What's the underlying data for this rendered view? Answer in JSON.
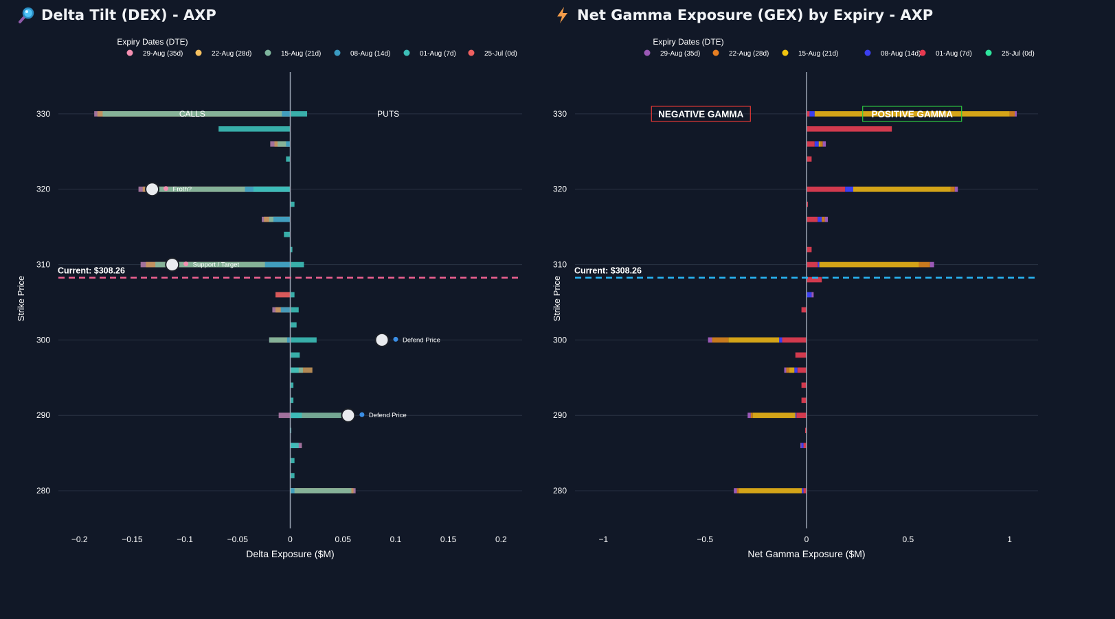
{
  "colors": {
    "background": "#111827",
    "grid": "#2a3344",
    "zero_line": "#9aa3b2",
    "dex_current_line": "#f06292",
    "gex_current_line": "#29b6f6",
    "negative_gamma": "#e53935",
    "positive_gamma": "#2ecc40"
  },
  "chart_data": [
    {
      "id": "dex",
      "type": "bar",
      "orientation": "horizontal",
      "barmode": "overlay",
      "title": "Delta Tilt (DEX) - AXP",
      "title_icon": "magnifier-icon",
      "xlabel": "Delta Exposure ($M)",
      "ylabel": "Strike Price",
      "xlim": [
        -0.22,
        0.22
      ],
      "ylim": [
        275,
        336
      ],
      "xticks": [
        -0.2,
        -0.15,
        -0.1,
        -0.05,
        0,
        0.05,
        0.1,
        0.15,
        0.2
      ],
      "xtick_labels": [
        "−0.2",
        "−0.15",
        "−0.1",
        "−0.05",
        "0",
        "0.05",
        "0.1",
        "0.15",
        "0.2"
      ],
      "yticks": [
        280,
        290,
        300,
        310,
        320,
        330
      ],
      "grid": true,
      "legend": {
        "title": "Expiry Dates (DTE)",
        "placement": "top",
        "items": [
          {
            "label": "29-Aug (35d)",
            "color": "#f48fb1"
          },
          {
            "label": "22-Aug (28d)",
            "color": "#f6c160"
          },
          {
            "label": "15-Aug (21d)",
            "color": "#7fb69e"
          },
          {
            "label": "08-Aug (14d)",
            "color": "#3a9bc2"
          },
          {
            "label": "01-Aug (7d)",
            "color": "#3dbfb8"
          },
          {
            "label": "25-Jul (0d)",
            "color": "#ef6060"
          }
        ]
      },
      "series": [
        {
          "name": "29-Aug (35d)",
          "color": "#b07aa8",
          "y": [
            330,
            328,
            326,
            324,
            322,
            320,
            318,
            316,
            314,
            312,
            310,
            308,
            306,
            304,
            302,
            300,
            298,
            296,
            294,
            292,
            290,
            288,
            286,
            284,
            282,
            280
          ],
          "values": [
            -0.186,
            0,
            -0.019,
            0,
            0,
            -0.144,
            0,
            -0.027,
            0,
            0,
            -0.142,
            0,
            0,
            -0.017,
            0,
            -0.02,
            0,
            0,
            0,
            0,
            -0.011,
            0,
            0.011,
            0,
            0,
            0.062
          ]
        },
        {
          "name": "22-Aug (28d)",
          "color": "#c4955a",
          "y": [
            330,
            328,
            326,
            324,
            322,
            320,
            318,
            316,
            314,
            312,
            310,
            308,
            306,
            304,
            302,
            300,
            298,
            296,
            294,
            292,
            290,
            288,
            286,
            284,
            282,
            280
          ],
          "values": [
            -0.183,
            0,
            -0.015,
            0,
            0,
            -0.14,
            0,
            -0.025,
            0,
            0,
            -0.137,
            0,
            0,
            -0.014,
            0,
            -0.019,
            0,
            0.021,
            0,
            0,
            0,
            0,
            0,
            0,
            0,
            0.06
          ]
        },
        {
          "name": "15-Aug (21d)",
          "color": "#7fb69e",
          "y": [
            330,
            328,
            326,
            324,
            322,
            320,
            318,
            316,
            314,
            312,
            310,
            308,
            306,
            304,
            302,
            300,
            298,
            296,
            294,
            292,
            290,
            288,
            286,
            284,
            282,
            280
          ],
          "values": [
            -0.178,
            0,
            -0.012,
            0,
            0,
            -0.132,
            0,
            -0.02,
            0,
            0,
            -0.128,
            0,
            0,
            0,
            0,
            -0.02,
            0,
            0.012,
            0,
            0,
            0.06,
            0,
            0,
            0,
            0,
            0.058
          ]
        },
        {
          "name": "08-Aug (14d)",
          "color": "#3a9bc2",
          "y": [
            330,
            328,
            326,
            324,
            322,
            320,
            318,
            316,
            314,
            312,
            310,
            308,
            306,
            304,
            302,
            300,
            298,
            296,
            294,
            292,
            290,
            288,
            286,
            284,
            282,
            280
          ],
          "values": [
            -0.008,
            0,
            -0.004,
            0,
            0,
            -0.043,
            0,
            -0.016,
            0,
            0,
            -0.024,
            0,
            0,
            -0.009,
            0,
            -0.003,
            0,
            0,
            0,
            0,
            0.008,
            0,
            0.004,
            0,
            0,
            0.004
          ]
        },
        {
          "name": "01-Aug (7d)",
          "color": "#3dbfb8",
          "y": [
            330,
            328,
            326,
            324,
            322,
            320,
            318,
            316,
            314,
            312,
            310,
            308,
            306,
            304,
            302,
            300,
            298,
            296,
            294,
            292,
            290,
            288,
            286,
            284,
            282,
            280
          ],
          "values": [
            0.016,
            -0.068,
            0,
            -0.004,
            0,
            -0.035,
            0.004,
            0,
            -0.006,
            0.002,
            0.013,
            0,
            0.004,
            0.008,
            0.006,
            0.025,
            0.009,
            0.008,
            0.003,
            0.003,
            0.011,
            0.001,
            0.008,
            0.004,
            0.004,
            0.001
          ]
        },
        {
          "name": "25-Jul (0d)",
          "color": "#ef6060",
          "y": [
            330,
            328,
            326,
            324,
            322,
            320,
            318,
            316,
            314,
            312,
            310,
            308,
            306,
            304,
            302,
            300,
            298,
            296,
            294,
            292,
            290,
            288,
            286,
            284,
            282,
            280
          ],
          "values": [
            0,
            0,
            0,
            0,
            0,
            0,
            0,
            0,
            0,
            0,
            0,
            0,
            -0.014,
            0,
            0,
            0,
            0,
            0,
            0,
            0,
            0,
            0,
            0,
            0,
            0,
            0
          ]
        }
      ],
      "current_price": {
        "value": 308.26,
        "label": "Current: $308.26"
      },
      "side_labels": [
        {
          "text": "CALLS",
          "x": -0.093,
          "y": 330
        },
        {
          "text": "PUTS",
          "x": 0.093,
          "y": 330
        }
      ],
      "markers": [
        {
          "x": -0.131,
          "y": 320,
          "label": "Froth?",
          "dot_color": "#f48fb1"
        },
        {
          "x": -0.112,
          "y": 310,
          "label": "Support / Target",
          "dot_color": "#f48fb1"
        },
        {
          "x": 0.087,
          "y": 300,
          "label": "Defend Price",
          "dot_color": "#3a8ee6"
        },
        {
          "x": 0.055,
          "y": 290,
          "label": "Defend Price",
          "dot_color": "#3a8ee6"
        }
      ]
    },
    {
      "id": "gex",
      "type": "bar",
      "orientation": "horizontal",
      "barmode": "relative",
      "title": "Net Gamma Exposure (GEX) by Expiry - AXP",
      "title_icon": "lightning-icon",
      "xlabel": "Net Gamma Exposure ($M)",
      "ylabel": "Strike Price",
      "xlim": [
        -1.14,
        1.14
      ],
      "ylim": [
        275,
        336
      ],
      "xticks": [
        -1,
        -0.5,
        0,
        0.5,
        1
      ],
      "xtick_labels": [
        "−1",
        "−0.5",
        "0",
        "0.5",
        "1"
      ],
      "yticks": [
        280,
        290,
        300,
        310,
        320,
        330
      ],
      "grid": true,
      "legend": {
        "title": "Expiry Dates (DTE)",
        "placement": "top",
        "items": [
          {
            "label": "29-Aug (35d)",
            "color": "#9b59b6"
          },
          {
            "label": "22-Aug (28d)",
            "color": "#e67e22"
          },
          {
            "label": "15-Aug (21d)",
            "color": "#f1c40f"
          },
          {
            "label": "08-Aug (14d)",
            "color": "#3b3ff0"
          },
          {
            "label": "01-Aug (7d)",
            "color": "#e63950"
          },
          {
            "label": "25-Jul (0d)",
            "color": "#2ee59d"
          }
        ]
      },
      "series": [
        {
          "name": "25-Jul (0d)",
          "color": "#2ee59d",
          "y": [
            330,
            328,
            326,
            324,
            322,
            320,
            318,
            316,
            314,
            312,
            310,
            308,
            306,
            304,
            302,
            300,
            298,
            296,
            294,
            292,
            290,
            288,
            286,
            284,
            282,
            280
          ],
          "values": [
            0,
            0,
            0,
            0,
            0,
            0,
            0,
            0,
            0,
            0,
            0,
            0,
            0,
            0,
            0,
            0,
            0,
            0,
            0,
            0,
            0,
            0,
            0,
            0,
            0,
            0
          ]
        },
        {
          "name": "01-Aug (7d)",
          "color": "#d23a4e",
          "y": [
            330,
            328,
            326,
            324,
            322,
            320,
            318,
            316,
            314,
            312,
            310,
            308,
            306,
            304,
            302,
            300,
            298,
            296,
            294,
            292,
            290,
            288,
            286,
            284,
            282,
            280
          ],
          "values": [
            0.015,
            0.42,
            0.04,
            0.025,
            0,
            0.19,
            0.007,
            0.055,
            0,
            0.025,
            0.055,
            0.075,
            0,
            -0.025,
            0,
            -0.12,
            -0.055,
            -0.045,
            -0.025,
            -0.025,
            -0.05,
            -0.007,
            -0.015,
            0,
            0,
            -0.015
          ]
        },
        {
          "name": "08-Aug (14d)",
          "color": "#3b3ff0",
          "y": [
            330,
            328,
            326,
            324,
            322,
            320,
            318,
            316,
            314,
            312,
            310,
            308,
            306,
            304,
            302,
            300,
            298,
            296,
            294,
            292,
            290,
            288,
            286,
            284,
            282,
            280
          ],
          "values": [
            0.025,
            0,
            0.02,
            0,
            0,
            0.04,
            0,
            0.02,
            0,
            0,
            0.008,
            0,
            0.025,
            0,
            0,
            -0.015,
            0,
            -0.015,
            0,
            0,
            -0.005,
            0,
            -0.01,
            0,
            0,
            -0.008
          ]
        },
        {
          "name": "15-Aug (21d)",
          "color": "#d4a418",
          "y": [
            330,
            328,
            326,
            324,
            322,
            320,
            318,
            316,
            314,
            312,
            310,
            308,
            306,
            304,
            302,
            300,
            298,
            296,
            294,
            292,
            290,
            288,
            286,
            284,
            282,
            280
          ],
          "values": [
            0.96,
            0,
            0.01,
            0,
            0,
            0.48,
            0,
            0,
            0,
            0,
            0.49,
            0,
            0,
            0,
            0,
            -0.25,
            0,
            -0.025,
            0,
            0,
            -0.21,
            0,
            0,
            0,
            0,
            -0.31
          ]
        },
        {
          "name": "22-Aug (28d)",
          "color": "#c87a1e",
          "y": [
            330,
            328,
            326,
            324,
            322,
            320,
            318,
            316,
            314,
            312,
            310,
            308,
            306,
            304,
            302,
            300,
            298,
            296,
            294,
            292,
            290,
            288,
            286,
            284,
            282,
            280
          ],
          "values": [
            0.025,
            0,
            0.01,
            0,
            0,
            0.02,
            0,
            0.015,
            0,
            0,
            0.055,
            0,
            0,
            0,
            0,
            -0.08,
            0,
            -0.015,
            0,
            0,
            -0.01,
            0,
            0,
            0,
            0,
            -0.01
          ]
        },
        {
          "name": "29-Aug (35d)",
          "color": "#9b59b6",
          "y": [
            330,
            328,
            326,
            324,
            322,
            320,
            318,
            316,
            314,
            312,
            310,
            308,
            306,
            304,
            302,
            300,
            298,
            296,
            294,
            292,
            290,
            288,
            286,
            284,
            282,
            280
          ],
          "values": [
            0.01,
            0,
            0.015,
            0,
            0,
            0.015,
            0,
            0.015,
            0,
            0,
            0.02,
            0,
            0.01,
            0,
            0,
            -0.02,
            0,
            -0.01,
            0,
            0,
            -0.015,
            0,
            -0.005,
            0,
            0,
            -0.015
          ]
        }
      ],
      "current_price": {
        "value": 308.26,
        "label": "Current: $308.26"
      },
      "region_labels": [
        {
          "text": "NEGATIVE GAMMA",
          "x": -0.52,
          "y": 330,
          "tone": "negative"
        },
        {
          "text": "POSITIVE GAMMA",
          "x": 0.52,
          "y": 330,
          "tone": "positive"
        }
      ]
    }
  ]
}
